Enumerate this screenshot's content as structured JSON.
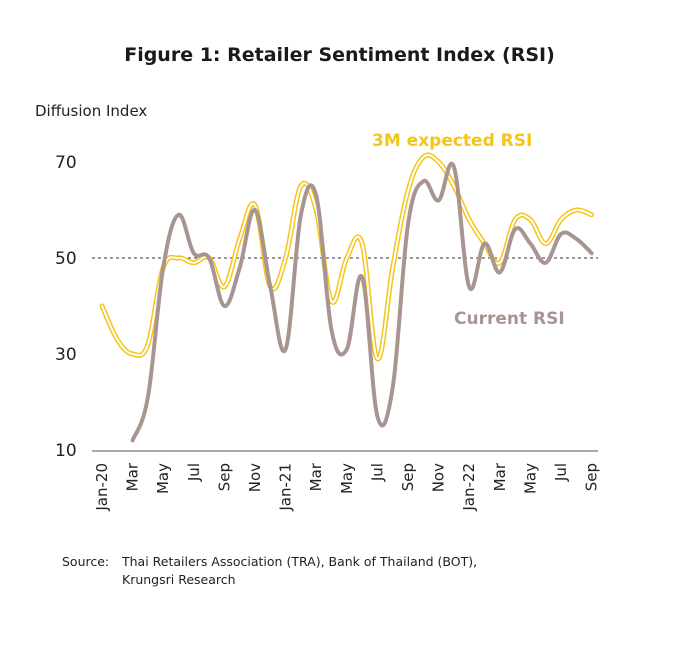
{
  "title": "Figure 1: Retailer Sentiment Index (RSI)",
  "source": {
    "label": "Source:",
    "line1": "Thai Retailers Association (TRA), Bank of Thailand (BOT),",
    "line2": "Krungsri Research"
  },
  "colors": {
    "expected": "#F5C518",
    "current": "#A89591",
    "refline": "#333333",
    "axis": "#555555"
  },
  "chart_data": {
    "type": "line",
    "ylabel": "Diffusion Index",
    "ylim": [
      10,
      70
    ],
    "yticks": [
      10,
      30,
      50,
      70
    ],
    "reference_line": 50,
    "x_labels": [
      "Jan-20",
      "Mar",
      "May",
      "Jul",
      "Sep",
      "Nov",
      "Jan-21",
      "Mar",
      "May",
      "Jul",
      "Sep",
      "Nov",
      "Jan-22",
      "Mar",
      "May",
      "Jul",
      "Sep"
    ],
    "x_label_indices": [
      0,
      2,
      4,
      6,
      8,
      10,
      12,
      14,
      16,
      18,
      20,
      22,
      24,
      26,
      28,
      30,
      32
    ],
    "series": [
      {
        "name": "3M expected RSI",
        "style": "double",
        "start_index": 0,
        "values": [
          40,
          33,
          30,
          32,
          48,
          50,
          49,
          50,
          44,
          54,
          61,
          44,
          50,
          65,
          60,
          41,
          50,
          53,
          29,
          48,
          64,
          71,
          70,
          65,
          58,
          53,
          49,
          58,
          58,
          53,
          58,
          60,
          59
        ]
      },
      {
        "name": "Current RSI",
        "style": "single",
        "start_index": 2,
        "values": [
          12,
          21,
          48,
          59,
          51,
          50,
          40,
          48,
          60,
          44,
          31,
          59,
          63,
          35,
          31,
          46,
          17,
          23,
          57,
          66,
          62,
          69,
          44,
          53,
          47,
          56,
          53,
          49,
          55,
          54,
          51
        ]
      }
    ]
  }
}
